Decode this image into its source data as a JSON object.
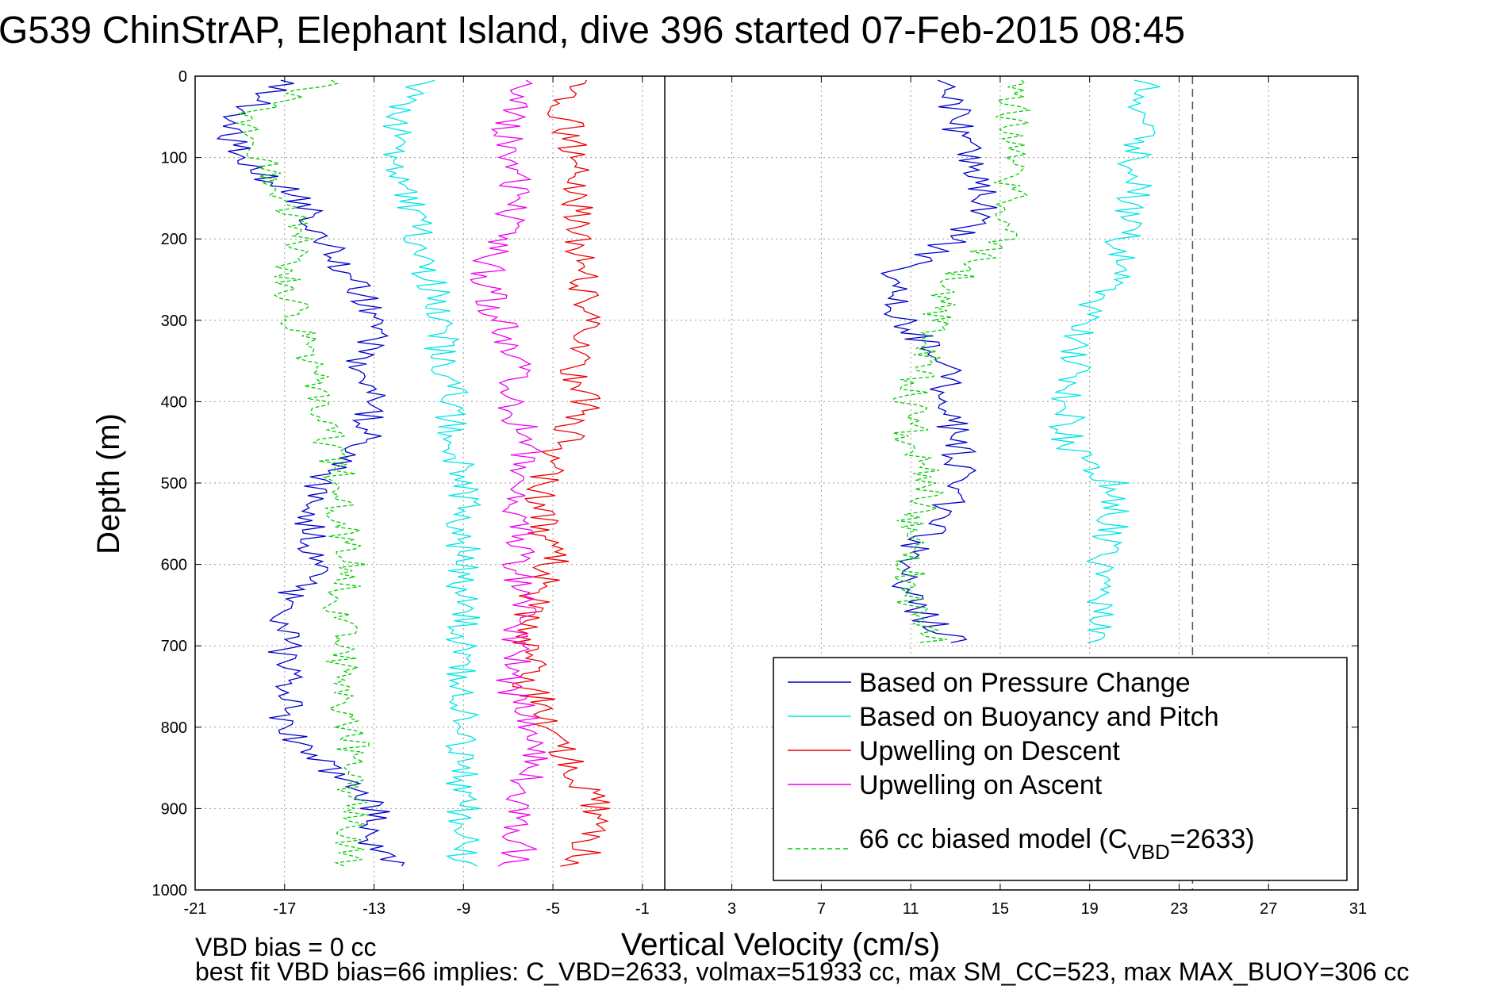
{
  "chart_data": {
    "type": "line",
    "title": "G539 ChinStrAP, Elephant Island, dive 396 started 07-Feb-2015 08:45",
    "xlabel": "Vertical Velocity (cm/s)",
    "ylabel": "Depth (m)",
    "xlim": [
      -21,
      31
    ],
    "ylim": [
      0,
      1000
    ],
    "y_reversed": true,
    "grid": true,
    "x_ticks": [
      -21,
      -17,
      -13,
      -9,
      -5,
      -1,
      3,
      7,
      11,
      15,
      19,
      23,
      27,
      31
    ],
    "x_tick_labels": [
      "-21",
      "-17",
      "-13",
      "-9",
      "-5",
      "-1",
      "3",
      "7",
      "11",
      "15",
      "19",
      "23",
      "27",
      "31"
    ],
    "y_ticks": [
      0,
      100,
      200,
      300,
      400,
      500,
      600,
      700,
      800,
      900,
      1000
    ],
    "y_tick_labels": [
      "0",
      "100",
      "200",
      "300",
      "400",
      "500",
      "600",
      "700",
      "800",
      "900",
      "1000"
    ],
    "reference_lines": [
      {
        "x": 0,
        "style": "solid",
        "color": "#000000"
      },
      {
        "x": 23.6,
        "style": "dashed",
        "color": "#555555"
      }
    ],
    "legend_position": "bottom-right",
    "series": [
      {
        "name": "Based on Pressure Change",
        "color": "#0000cc",
        "style": "solid",
        "depth": [
          5,
          50,
          100,
          150,
          200,
          250,
          300,
          350,
          400,
          450,
          500,
          550,
          600,
          650,
          700,
          750,
          800,
          850,
          900,
          950,
          975
        ],
        "descent": [
          -16.5,
          -19.5,
          -19.0,
          -16.5,
          -15.0,
          -14.0,
          -13.0,
          -13.5,
          -13.0,
          -13.5,
          -15.5,
          -16.0,
          -15.5,
          -17.0,
          -17.0,
          -17.0,
          -17.0,
          -15.0,
          -13.0,
          -13.0,
          -12.0
        ],
        "ascent": [
          12.5,
          13.0,
          13.5,
          14.5,
          13.0,
          10.0,
          10.5,
          12.5,
          12.5,
          13.0,
          13.5,
          12.0,
          10.5,
          11.0,
          13.0,
          null,
          null,
          null,
          null,
          null,
          null
        ]
      },
      {
        "name": "Based on Buoyancy and Pitch",
        "color": "#00e5e5",
        "style": "solid",
        "depth": [
          5,
          50,
          100,
          150,
          200,
          250,
          300,
          350,
          400,
          450,
          500,
          550,
          600,
          650,
          700,
          750,
          800,
          850,
          900,
          950,
          975
        ],
        "descent": [
          -11.0,
          -12.0,
          -12.0,
          -11.5,
          -11.0,
          -10.5,
          -10.0,
          -10.0,
          -9.5,
          -9.5,
          -9.0,
          -9.0,
          -9.0,
          -9.0,
          -9.0,
          -9.0,
          -9.0,
          -9.0,
          -9.0,
          -9.0,
          -9.0
        ],
        "ascent": [
          21.5,
          21.5,
          21.0,
          21.0,
          20.5,
          20.0,
          18.5,
          18.5,
          18.0,
          18.0,
          20.0,
          20.0,
          19.5,
          19.5,
          19.5,
          null,
          null,
          null,
          null,
          null,
          null
        ]
      },
      {
        "name": "Upwelling on Descent",
        "color": "#ee0000",
        "style": "solid",
        "depth": [
          5,
          50,
          100,
          150,
          200,
          250,
          300,
          350,
          400,
          450,
          500,
          550,
          600,
          650,
          700,
          750,
          800,
          850,
          900,
          950,
          975
        ],
        "descent": [
          -4.0,
          -4.5,
          -4.0,
          -4.0,
          -4.0,
          -3.5,
          -3.5,
          -4.0,
          -3.5,
          -4.5,
          -5.5,
          -5.5,
          -5.0,
          -6.0,
          -6.0,
          -6.0,
          -5.0,
          -4.0,
          -3.0,
          -3.5,
          -4.0
        ],
        "ascent": []
      },
      {
        "name": "Upwelling on Ascent",
        "color": "#ee00ee",
        "style": "solid",
        "depth": [
          5,
          50,
          100,
          150,
          200,
          250,
          300,
          350,
          400,
          450,
          500,
          550,
          600,
          650,
          700,
          750,
          800,
          850,
          900,
          950,
          975
        ],
        "descent": [
          -6.5,
          -7.0,
          -7.0,
          -6.5,
          -7.5,
          -8.0,
          -7.5,
          -6.5,
          -7.0,
          -6.0,
          -6.5,
          -6.5,
          -6.5,
          -6.5,
          -6.5,
          -7.0,
          -6.0,
          -6.0,
          -6.5,
          -6.5,
          -7.0
        ],
        "ascent": []
      },
      {
        "name": "66 cc biased model",
        "color": "#00cc00",
        "style": "dashed",
        "depth": [
          5,
          50,
          100,
          150,
          200,
          250,
          300,
          350,
          400,
          450,
          500,
          550,
          600,
          650,
          700,
          750,
          800,
          850,
          900,
          950,
          975
        ],
        "descent": [
          -15.0,
          -19.0,
          -18.0,
          -17.0,
          -16.0,
          -17.0,
          -16.5,
          -16.0,
          -15.5,
          -15.0,
          -14.5,
          -14.5,
          -14.0,
          -14.5,
          -14.5,
          -14.5,
          -14.0,
          -14.0,
          -14.0,
          -14.0,
          -14.0
        ],
        "ascent": [
          15.5,
          15.5,
          15.5,
          15.5,
          15.0,
          13.0,
          12.0,
          11.5,
          11.0,
          11.0,
          12.0,
          11.0,
          11.0,
          11.0,
          12.0,
          null,
          null,
          null,
          null,
          null,
          null
        ]
      }
    ]
  },
  "legend": {
    "items": [
      {
        "label": "Based on Pressure Change",
        "color": "#0000cc",
        "dash": false
      },
      {
        "label": "Based on Buoyancy and Pitch",
        "color": "#00e5e5",
        "dash": false
      },
      {
        "label": "Upwelling on Descent",
        "color": "#ee0000",
        "dash": false
      },
      {
        "label": "Upwelling on Ascent",
        "color": "#ee00ee",
        "dash": false
      }
    ],
    "model_label_prefix": "66 cc biased model (C",
    "model_label_sub": "VBD",
    "model_label_suffix": "=2633)",
    "model_color": "#00cc00"
  },
  "footer": {
    "line1": "VBD bias = 0 cc",
    "line2": "best fit VBD bias=66 implies: C_VBD=2633, volmax=51933 cc, max SM_CC=523, max MAX_BUOY=306 cc"
  }
}
